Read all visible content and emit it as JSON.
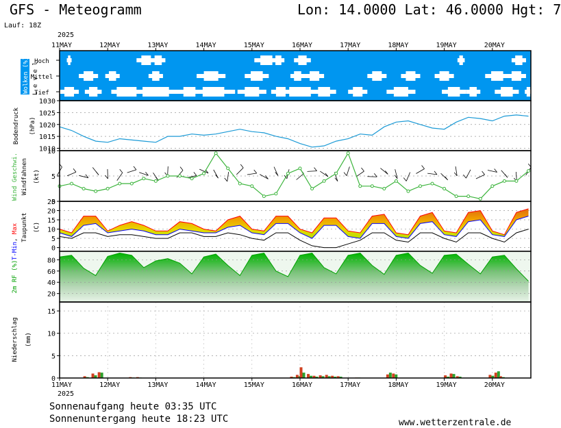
{
  "header": {
    "title": "GFS - Meteogramm",
    "coords": "Lon: 14.0000 Lat: 46.0000 Hgt: 7",
    "run": "Lauf: 18Z"
  },
  "footer": {
    "sunrise": "Sonnenaufgang heute 03:35 UTC",
    "sunset": "Sonnenuntergang heute 18:23 UTC",
    "url": "www.wetterzentrale.de"
  },
  "time_axis": {
    "year": "2025",
    "dates": [
      "11MAY",
      "12MAY",
      "13MAY",
      "14MAY",
      "15MAY",
      "16MAY",
      "17MAY",
      "18MAY",
      "19MAY",
      "20MAY"
    ]
  },
  "colors": {
    "cloud_bg": "#0096f0",
    "pressure": "#1b9ad6",
    "wind": "#3cb43c",
    "tmin": "#0000ff",
    "tmax": "#ff0000",
    "precip_red": "#d04020",
    "precip_green": "#2ca02c"
  },
  "chart_data": [
    {
      "type": "heatmap",
      "name_label": "Wolken (%)",
      "side_label": "L e v e l",
      "levels": [
        "Hoch",
        "Mittel",
        "Tief"
      ],
      "note": "blue = cloud cover, white gaps = clear sky"
    },
    {
      "type": "line",
      "ylabel": "Bodendruck",
      "unit": "(hPa)",
      "ylim": [
        1009,
        1030
      ],
      "yticks": [
        1010,
        1015,
        1020,
        1025,
        1030
      ],
      "x_days": [
        0,
        0.25,
        0.5,
        0.75,
        1,
        1.25,
        1.5,
        1.75,
        2,
        2.25,
        2.5,
        2.75,
        3,
        3.25,
        3.5,
        3.75,
        4,
        4.25,
        4.5,
        4.75,
        5,
        5.25,
        5.5,
        5.75,
        6,
        6.25,
        6.5,
        6.75,
        7,
        7.25,
        7.5,
        7.75,
        8,
        8.25,
        8.5,
        8.75,
        9,
        9.25,
        9.5,
        9.75
      ],
      "values": [
        1019,
        1017.5,
        1015,
        1013,
        1012.5,
        1014,
        1013.5,
        1013,
        1012.5,
        1015,
        1015,
        1016,
        1015.5,
        1016,
        1017,
        1018,
        1017,
        1016.5,
        1015,
        1014,
        1012,
        1010.5,
        1011,
        1013,
        1014,
        1016,
        1015.5,
        1019,
        1021,
        1021.5,
        1020,
        1018.5,
        1018,
        1021,
        1023,
        1022.5,
        1021.5,
        1023.5,
        1024,
        1023.5
      ]
    },
    {
      "type": "line",
      "ylabel": "Wind Geschwi.",
      "ylabel2": "Windfahnen",
      "unit": "(kt)",
      "ylim": [
        0,
        10
      ],
      "yticks": [
        0,
        5,
        10
      ],
      "x_days": [
        0,
        0.25,
        0.5,
        0.75,
        1,
        1.25,
        1.5,
        1.75,
        2,
        2.25,
        2.5,
        2.75,
        3,
        3.25,
        3.5,
        3.75,
        4,
        4.25,
        4.5,
        4.75,
        5,
        5.25,
        5.5,
        5.75,
        6,
        6.25,
        6.5,
        6.75,
        7,
        7.25,
        7.5,
        7.75,
        8,
        8.25,
        8.5,
        8.75,
        9,
        9.25,
        9.5,
        9.75
      ],
      "values": [
        3,
        3.5,
        2.5,
        2,
        2.5,
        3.5,
        3.5,
        4.5,
        4,
        5,
        5,
        4.5,
        5.5,
        9.5,
        6.5,
        3.5,
        3,
        1,
        1.5,
        5.5,
        6.5,
        2.5,
        4,
        5.5,
        9.5,
        3,
        3,
        2.5,
        4,
        2,
        3,
        3.5,
        2.5,
        1,
        1,
        0.5,
        3,
        4,
        4,
        6
      ]
    },
    {
      "type": "area",
      "ylabel": "T-Min, Max",
      "ylabel_tmin": "T-Min",
      "ylabel_sep": ", ",
      "ylabel_tmax": "Max",
      "ylabel2": "Taupunkt",
      "unit": "(C)",
      "ylim": [
        -2,
        25
      ],
      "yticks": [
        0,
        5,
        10,
        15,
        20,
        25
      ],
      "x_days": [
        0,
        0.25,
        0.5,
        0.75,
        1,
        1.25,
        1.5,
        1.75,
        2,
        2.25,
        2.5,
        2.75,
        3,
        3.25,
        3.5,
        3.75,
        4,
        4.25,
        4.5,
        4.75,
        5,
        5.25,
        5.5,
        5.75,
        6,
        6.25,
        6.5,
        6.75,
        7,
        7.25,
        7.5,
        7.75,
        8,
        8.25,
        8.5,
        8.75,
        9,
        9.25,
        9.5,
        9.75
      ],
      "tmax": [
        10,
        8,
        17,
        17,
        9,
        12,
        14,
        12,
        9,
        9,
        14,
        13,
        10,
        9,
        15,
        17,
        10,
        9,
        17,
        17,
        10,
        8,
        16,
        16,
        9,
        8,
        17,
        18,
        8,
        7,
        17,
        19,
        9,
        8,
        19,
        20,
        9,
        7,
        19,
        21
      ],
      "tmin": [
        8,
        6,
        12,
        13,
        8,
        9,
        10,
        9,
        7,
        7,
        10,
        9,
        8,
        8,
        11,
        12,
        8,
        7,
        13,
        13,
        8,
        5,
        12,
        12,
        6,
        5,
        13,
        13,
        6,
        5,
        13,
        14,
        7,
        6,
        14,
        15,
        7,
        6,
        15,
        17
      ],
      "dewpoint": [
        6,
        5,
        8,
        8,
        6,
        7,
        7,
        6,
        5,
        5,
        8,
        8,
        6,
        6,
        8,
        7,
        5,
        4,
        8,
        8,
        4,
        1,
        0,
        0,
        2,
        4,
        8,
        8,
        4,
        3,
        8,
        8,
        5,
        3,
        8,
        8,
        5,
        3,
        8,
        10
      ]
    },
    {
      "type": "area",
      "ylabel": "2m RF (%)",
      "ylim": [
        5,
        95
      ],
      "yticks": [
        20,
        40,
        60,
        80
      ],
      "x_days": [
        0,
        0.25,
        0.5,
        0.75,
        1,
        1.25,
        1.5,
        1.75,
        2,
        2.25,
        2.5,
        2.75,
        3,
        3.25,
        3.5,
        3.75,
        4,
        4.25,
        4.5,
        4.75,
        5,
        5.25,
        5.5,
        5.75,
        6,
        6.25,
        6.5,
        6.75,
        7,
        7.25,
        7.5,
        7.75,
        8,
        8.25,
        8.5,
        8.75,
        9,
        9.25,
        9.5,
        9.75
      ],
      "values": [
        85,
        88,
        65,
        52,
        86,
        92,
        88,
        66,
        78,
        82,
        74,
        55,
        85,
        90,
        70,
        52,
        88,
        92,
        60,
        50,
        88,
        92,
        66,
        55,
        88,
        92,
        70,
        54,
        88,
        92,
        70,
        56,
        88,
        90,
        72,
        55,
        85,
        88,
        64,
        42
      ]
    },
    {
      "type": "bar",
      "ylabel": "Niederschlag",
      "unit": "(mm)",
      "ylim": [
        0,
        17
      ],
      "yticks": [
        0,
        5,
        10,
        15
      ],
      "bars": [
        {
          "x": 0.55,
          "red": 0.4,
          "green": 0.2
        },
        {
          "x": 0.72,
          "red": 1.0,
          "green": 0.6
        },
        {
          "x": 0.85,
          "red": 1.3,
          "green": 1.2
        },
        {
          "x": 1.5,
          "red": 0.2,
          "green": 0.1
        },
        {
          "x": 1.65,
          "red": 0.2,
          "green": 0.1
        },
        {
          "x": 4.85,
          "red": 0.3,
          "green": 0.2
        },
        {
          "x": 4.97,
          "red": 0.7,
          "green": 0.4
        },
        {
          "x": 5.05,
          "red": 2.4,
          "green": 1.2
        },
        {
          "x": 5.2,
          "red": 0.9,
          "green": 0.5
        },
        {
          "x": 5.32,
          "red": 0.5,
          "green": 0.3
        },
        {
          "x": 5.45,
          "red": 0.6,
          "green": 0.4
        },
        {
          "x": 5.58,
          "red": 0.7,
          "green": 0.4
        },
        {
          "x": 5.7,
          "red": 0.5,
          "green": 0.3
        },
        {
          "x": 5.82,
          "red": 0.4,
          "green": 0.3
        },
        {
          "x": 6.2,
          "red": 0.1,
          "green": 0.1
        },
        {
          "x": 6.85,
          "red": 0.8,
          "green": 1.2
        },
        {
          "x": 6.97,
          "red": 1.0,
          "green": 0.8
        },
        {
          "x": 8.05,
          "red": 0.6,
          "green": 0.3
        },
        {
          "x": 8.17,
          "red": 1.0,
          "green": 0.9
        },
        {
          "x": 8.3,
          "red": 0.4,
          "green": 0.3
        },
        {
          "x": 8.98,
          "red": 0.7,
          "green": 0.5
        },
        {
          "x": 9.1,
          "red": 1.2,
          "green": 1.5
        },
        {
          "x": 9.2,
          "red": 0.4,
          "green": 0.2
        }
      ]
    }
  ]
}
